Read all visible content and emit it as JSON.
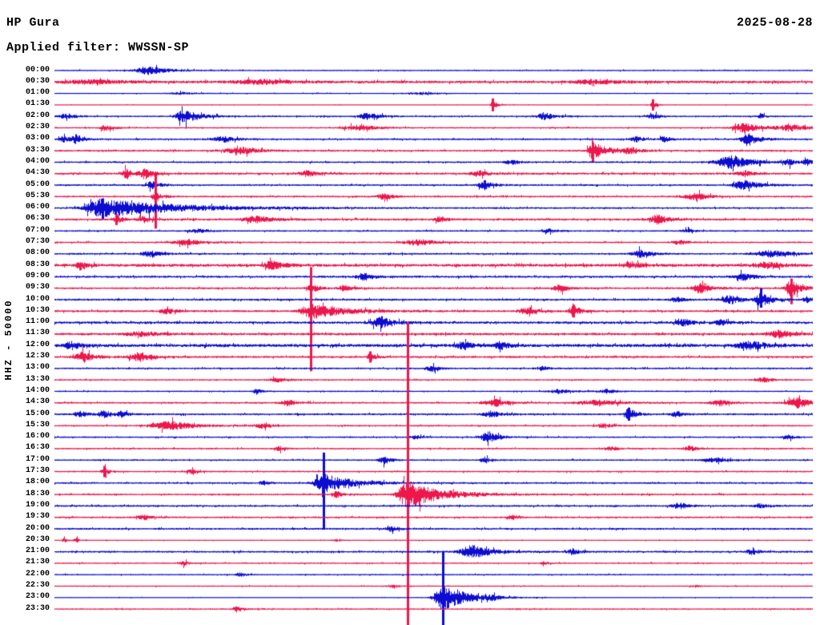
{
  "header": {
    "station": "HP Gura",
    "date": "2025-08-28",
    "filter_label": "Applied filter: WWSSN-SP"
  },
  "y_axis_label": "HHZ - 50000",
  "colors": {
    "trace_blue": "#0d0dd2",
    "trace_red": "#ed174d",
    "text": "#000000",
    "background": "#ffffff"
  },
  "chart_data": {
    "type": "line",
    "subtype": "helicorder-day-plot",
    "station": "HP Gura",
    "date": "2025-08-28",
    "filter": "WWSSN-SP",
    "channel_scale_label": "HHZ - 50000",
    "minutes_per_row": 30,
    "row_color_rule": "hour rows blue, half-hour rows red",
    "event_fields": [
      "x_px",
      "amplitude_px",
      "rise_width_px",
      "decay_px",
      "spike_up_px",
      "spike_down_px"
    ],
    "rows": [
      {
        "t": "00:00",
        "c": "b",
        "n": 0.9,
        "e": [
          [
            185,
            5,
            10,
            22
          ]
        ]
      },
      {
        "t": "00:30",
        "c": "r",
        "n": 1.6,
        "e": [
          [
            120,
            2,
            30,
            40
          ],
          [
            330,
            2.5,
            25,
            30
          ],
          [
            745,
            2.5,
            20,
            30
          ]
        ]
      },
      {
        "t": "01:00",
        "c": "b",
        "n": 0.7,
        "e": [
          [
            230,
            1.5,
            12,
            15
          ],
          [
            530,
            1.5,
            15,
            15
          ]
        ]
      },
      {
        "t": "01:30",
        "c": "r",
        "n": 0.6,
        "e": [
          [
            615,
            5,
            2,
            5,
            8,
            8
          ],
          [
            815,
            4,
            2,
            5,
            7,
            7
          ]
        ]
      },
      {
        "t": "02:00",
        "c": "b",
        "n": 1.0,
        "e": [
          [
            85,
            3,
            8,
            10
          ],
          [
            230,
            8,
            7,
            18
          ],
          [
            460,
            4,
            8,
            14
          ],
          [
            680,
            4.5,
            6,
            12
          ],
          [
            815,
            3.5,
            5,
            8
          ],
          [
            950,
            2.5,
            4,
            6
          ]
        ]
      },
      {
        "t": "02:30",
        "c": "r",
        "n": 0.9,
        "e": [
          [
            130,
            4.5,
            3,
            8
          ],
          [
            450,
            3.5,
            14,
            20
          ],
          [
            930,
            5.5,
            10,
            22
          ],
          [
            990,
            3.5,
            12,
            20
          ]
        ]
      },
      {
        "t": "03:00",
        "c": "b",
        "n": 1.1,
        "e": [
          [
            80,
            4,
            4,
            7
          ],
          [
            95,
            5,
            4,
            8
          ],
          [
            280,
            3.5,
            10,
            15
          ],
          [
            795,
            3.5,
            5,
            8
          ],
          [
            830,
            3.5,
            4,
            7
          ],
          [
            935,
            8,
            6,
            12
          ]
        ]
      },
      {
        "t": "03:30",
        "c": "r",
        "n": 1.2,
        "e": [
          [
            300,
            4.5,
            13,
            18
          ],
          [
            740,
            12,
            4,
            16,
            10,
            14
          ],
          [
            790,
            3.5,
            8,
            10
          ]
        ]
      },
      {
        "t": "04:00",
        "c": "b",
        "n": 1.1,
        "e": [
          [
            640,
            3,
            6,
            8
          ],
          [
            915,
            8,
            13,
            22
          ],
          [
            985,
            3.5,
            5,
            8
          ],
          [
            1008,
            3.5,
            4,
            6
          ]
        ]
      },
      {
        "t": "04:30",
        "c": "r",
        "n": 1.3,
        "e": [
          [
            158,
            5.5,
            4,
            7
          ],
          [
            182,
            6.5,
            5,
            9
          ],
          [
            385,
            3.5,
            8,
            12
          ],
          [
            600,
            3,
            8,
            10
          ],
          [
            930,
            3.5,
            7,
            10
          ]
        ]
      },
      {
        "t": "05:00",
        "c": "b",
        "n": 1.1,
        "e": [
          [
            190,
            4.5,
            5,
            9
          ],
          [
            605,
            5.5,
            5,
            10
          ],
          [
            930,
            5.5,
            10,
            18
          ]
        ]
      },
      {
        "t": "05:30",
        "c": "r",
        "n": 1.1,
        "e": [
          [
            194,
            6,
            3,
            8,
            30,
            40
          ],
          [
            480,
            3.5,
            6,
            10
          ],
          [
            870,
            4.5,
            10,
            14
          ]
        ]
      },
      {
        "t": "06:00",
        "c": "b",
        "n": 1.1,
        "e": [
          [
            128,
            11,
            14,
            85,
            12,
            14
          ]
        ]
      },
      {
        "t": "06:30",
        "c": "r",
        "n": 1.3,
        "e": [
          [
            145,
            6,
            2,
            6,
            7,
            7
          ],
          [
            180,
            3.5,
            5,
            8
          ],
          [
            322,
            4,
            12,
            20
          ],
          [
            550,
            3,
            6,
            8
          ],
          [
            822,
            5.5,
            7,
            12
          ]
        ]
      },
      {
        "t": "07:00",
        "c": "b",
        "n": 1.0,
        "e": [
          [
            250,
            2,
            10,
            12
          ],
          [
            685,
            2.5,
            5,
            8
          ],
          [
            860,
            2,
            6,
            8
          ]
        ]
      },
      {
        "t": "07:30",
        "c": "r",
        "n": 1.0,
        "e": [
          [
            235,
            3.5,
            13,
            18
          ],
          [
            525,
            3.5,
            15,
            20
          ],
          [
            850,
            2.5,
            8,
            10
          ]
        ]
      },
      {
        "t": "08:00",
        "c": "b",
        "n": 1.1,
        "e": [
          [
            190,
            3.5,
            9,
            12
          ],
          [
            800,
            4.5,
            7,
            12
          ],
          [
            965,
            4,
            14,
            20
          ]
        ]
      },
      {
        "t": "08:30",
        "c": "r",
        "n": 1.8,
        "e": [
          [
            100,
            5,
            3,
            7
          ],
          [
            340,
            5,
            7,
            13
          ],
          [
            790,
            3.5,
            8,
            12
          ],
          [
            960,
            3.5,
            12,
            16
          ]
        ]
      },
      {
        "t": "09:00",
        "c": "b",
        "n": 1.3,
        "e": [
          [
            455,
            4.5,
            7,
            11
          ],
          [
            930,
            4,
            8,
            12
          ]
        ]
      },
      {
        "t": "09:30",
        "c": "r",
        "n": 1.2,
        "e": [
          [
            390,
            4.5,
            5,
            8
          ],
          [
            430,
            3.5,
            5,
            8
          ],
          [
            700,
            4,
            7,
            10
          ],
          [
            875,
            6,
            7,
            11
          ],
          [
            988,
            11,
            5,
            11,
            12,
            20
          ]
        ]
      },
      {
        "t": "10:00",
        "c": "b",
        "n": 1.3,
        "e": [
          [
            845,
            3.5,
            5,
            8
          ],
          [
            912,
            5.5,
            7,
            10
          ],
          [
            950,
            8,
            5,
            12,
            14,
            10
          ],
          [
            1008,
            3.5,
            4,
            6
          ]
        ]
      },
      {
        "t": "10:30",
        "c": "r",
        "n": 1.3,
        "e": [
          [
            210,
            3.5,
            7,
            9
          ],
          [
            388,
            9,
            8,
            40,
            55,
            75
          ],
          [
            660,
            4.5,
            7,
            10
          ],
          [
            716,
            6,
            4,
            9,
            8,
            8
          ]
        ]
      },
      {
        "t": "11:00",
        "c": "b",
        "n": 1.5,
        "e": [
          [
            475,
            7,
            7,
            14
          ],
          [
            855,
            4,
            7,
            9
          ],
          [
            900,
            3.5,
            5,
            8
          ]
        ]
      },
      {
        "t": "11:30",
        "c": "r",
        "n": 1.5,
        "e": [
          [
            180,
            2.5,
            15,
            20
          ],
          [
            975,
            4.5,
            10,
            14
          ]
        ]
      },
      {
        "t": "12:00",
        "c": "b",
        "n": 1.9,
        "e": [
          [
            90,
            4,
            8,
            10
          ],
          [
            580,
            4.5,
            7,
            10
          ],
          [
            625,
            4.5,
            5,
            9
          ],
          [
            940,
            4.5,
            13,
            16
          ]
        ]
      },
      {
        "t": "12:30",
        "c": "r",
        "n": 1.3,
        "e": [
          [
            105,
            6.5,
            7,
            11
          ],
          [
            175,
            5.5,
            9,
            13
          ],
          [
            462,
            5,
            2,
            6,
            7,
            7
          ]
        ]
      },
      {
        "t": "13:00",
        "c": "b",
        "n": 1.1,
        "e": [
          [
            540,
            3.5,
            5,
            8
          ],
          [
            677,
            2.5,
            5,
            7
          ]
        ]
      },
      {
        "t": "13:30",
        "c": "r",
        "n": 1.0,
        "e": [
          [
            350,
            2.5,
            9,
            10
          ],
          [
            955,
            3,
            7,
            9
          ]
        ]
      },
      {
        "t": "14:00",
        "c": "b",
        "n": 0.9,
        "e": [
          [
            320,
            3.5,
            3,
            6
          ],
          [
            700,
            2.5,
            10,
            12
          ],
          [
            760,
            2.5,
            8,
            10
          ]
        ]
      },
      {
        "t": "14:30",
        "c": "r",
        "n": 1.1,
        "e": [
          [
            360,
            3.5,
            7,
            9
          ],
          [
            620,
            4,
            11,
            14
          ],
          [
            750,
            3,
            20,
            24
          ],
          [
            900,
            3.5,
            9,
            11
          ],
          [
            997,
            6.5,
            10,
            14
          ]
        ]
      },
      {
        "t": "15:00",
        "c": "b",
        "n": 1.2,
        "e": [
          [
            100,
            3.5,
            5,
            8
          ],
          [
            130,
            4.5,
            5,
            8
          ],
          [
            152,
            3.5,
            4,
            7
          ],
          [
            615,
            3.5,
            8,
            10
          ],
          [
            785,
            8,
            3,
            8,
            8,
            8
          ],
          [
            845,
            3,
            5,
            8
          ]
        ]
      },
      {
        "t": "15:30",
        "c": "r",
        "n": 1.0,
        "e": [
          [
            215,
            5.5,
            17,
            26
          ],
          [
            330,
            3.5,
            7,
            9
          ],
          [
            755,
            2.5,
            8,
            10
          ]
        ]
      },
      {
        "t": "16:00",
        "c": "b",
        "n": 1.0,
        "e": [
          [
            520,
            2.5,
            5,
            7
          ],
          [
            611,
            7,
            7,
            11
          ],
          [
            985,
            2.5,
            5,
            7
          ]
        ]
      },
      {
        "t": "16:30",
        "c": "r",
        "n": 1.0,
        "e": [
          [
            350,
            2.5,
            5,
            7
          ],
          [
            765,
            2.5,
            6,
            8
          ],
          [
            862,
            3,
            6,
            8
          ]
        ]
      },
      {
        "t": "17:00",
        "c": "b",
        "n": 1.0,
        "e": [
          [
            480,
            4.5,
            5,
            9
          ],
          [
            605,
            3.5,
            4,
            7
          ],
          [
            895,
            2.5,
            12,
            14
          ]
        ]
      },
      {
        "t": "17:30",
        "c": "r",
        "n": 1.0,
        "e": [
          [
            130,
            5,
            2,
            6,
            7,
            7
          ],
          [
            240,
            2.5,
            5,
            7
          ]
        ]
      },
      {
        "t": "18:00",
        "c": "b",
        "n": 1.1,
        "e": [
          [
            330,
            2.5,
            5,
            7
          ],
          [
            404,
            12,
            7,
            32,
            38,
            58
          ]
        ]
      },
      {
        "t": "18:30",
        "c": "r",
        "n": 1.1,
        "e": [
          [
            420,
            4,
            4,
            7
          ],
          [
            509,
            16,
            8,
            40,
            215,
            166
          ]
        ]
      },
      {
        "t": "19:00",
        "c": "b",
        "n": 1.2,
        "e": [
          [
            850,
            3.5,
            7,
            9
          ],
          [
            950,
            2.5,
            6,
            8
          ]
        ]
      },
      {
        "t": "19:30",
        "c": "r",
        "n": 1.1,
        "e": [
          [
            180,
            2.5,
            7,
            9
          ],
          [
            640,
            2.5,
            5,
            7
          ]
        ]
      },
      {
        "t": "20:00",
        "c": "b",
        "n": 1.2,
        "e": [
          [
            490,
            3.5,
            4,
            7
          ]
        ]
      },
      {
        "t": "20:30",
        "c": "r",
        "n": 0.7,
        "e": [
          [
            80,
            2.5,
            2,
            4
          ],
          [
            95,
            2.5,
            2,
            4
          ],
          [
            420,
            1.5,
            3,
            5
          ]
        ]
      },
      {
        "t": "21:00",
        "c": "b",
        "n": 1.2,
        "e": [
          [
            590,
            8,
            10,
            22
          ],
          [
            715,
            3.5,
            5,
            8
          ],
          [
            940,
            3.5,
            6,
            9
          ]
        ]
      },
      {
        "t": "21:30",
        "c": "r",
        "n": 0.9,
        "e": [
          [
            230,
            2.5,
            4,
            6
          ],
          [
            680,
            2,
            4,
            6
          ]
        ]
      },
      {
        "t": "22:00",
        "c": "b",
        "n": 0.9,
        "e": [
          [
            300,
            2.5,
            4,
            6
          ]
        ]
      },
      {
        "t": "22:30",
        "c": "r",
        "n": 0.8,
        "e": [
          [
            490,
            1.5,
            5,
            6
          ],
          [
            870,
            1.5,
            5,
            6
          ]
        ]
      },
      {
        "t": "23:00",
        "c": "b",
        "n": 0.6,
        "e": [
          [
            553,
            16,
            7,
            30,
            58,
            40
          ],
          [
            615,
            2.5,
            4,
            6
          ]
        ]
      },
      {
        "t": "23:30",
        "c": "r",
        "n": 0.9,
        "e": [
          [
            295,
            3.5,
            3,
            6
          ]
        ]
      }
    ]
  }
}
